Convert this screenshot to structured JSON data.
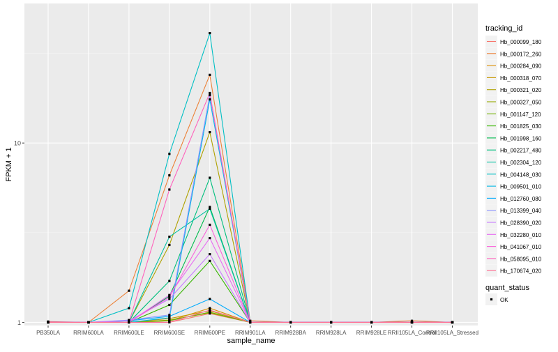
{
  "chart_data": {
    "type": "line",
    "title": "",
    "xlabel": "sample_name",
    "ylabel": "FPKM + 1",
    "y_scale": "log10",
    "ylim": [
      0.96,
      60
    ],
    "y_ticks": [
      1,
      10
    ],
    "y_tick_labels": [
      "1",
      "10"
    ],
    "grid": true,
    "legend_position": "right",
    "categories": [
      "PB350LA",
      "RRIM600LA",
      "RRIM600LE",
      "RRIM600SE",
      "RRIM600PE",
      "RRIM901LA",
      "RRIM928BA",
      "RRIM928LA",
      "RRIM928LE",
      "RRII105LA_Control",
      "RRII105LA_Stressed"
    ],
    "color_legend_title": "tracking_id",
    "shape_legend_title": "quant_status",
    "shape_legend_items": [
      "OK"
    ],
    "series": [
      {
        "name": "Hb_000099_180",
        "color": "#F8766D",
        "values": [
          1.01,
          1.0,
          1.0,
          1.0,
          1.12,
          1.0,
          1.0,
          1.0,
          1.0,
          1.0,
          1.0
        ]
      },
      {
        "name": "Hb_000172_260",
        "color": "#EC8239",
        "values": [
          1.0,
          1.0,
          1.5,
          6.6,
          24.0,
          1.02,
          1.0,
          1.0,
          1.0,
          1.02,
          1.0
        ]
      },
      {
        "name": "Hb_000284_090",
        "color": "#DB8E00",
        "values": [
          1.0,
          1.0,
          1.0,
          1.02,
          1.2,
          1.0,
          1.0,
          1.0,
          1.0,
          1.0,
          1.0
        ]
      },
      {
        "name": "Hb_000318_070",
        "color": "#C79800",
        "values": [
          1.0,
          1.0,
          1.0,
          1.05,
          1.16,
          1.0,
          1.0,
          1.0,
          1.0,
          1.0,
          1.0
        ]
      },
      {
        "name": "Hb_000321_020",
        "color": "#AFA100",
        "values": [
          1.0,
          1.0,
          1.0,
          2.7,
          11.5,
          1.0,
          1.0,
          1.0,
          1.0,
          1.0,
          1.0
        ]
      },
      {
        "name": "Hb_000327_050",
        "color": "#96A900",
        "values": [
          1.0,
          1.0,
          1.0,
          1.03,
          1.13,
          1.0,
          1.0,
          1.0,
          1.0,
          1.0,
          1.0
        ]
      },
      {
        "name": "Hb_001147_120",
        "color": "#72B000",
        "values": [
          1.0,
          1.0,
          1.0,
          1.02,
          1.14,
          1.0,
          1.0,
          1.0,
          1.0,
          1.0,
          1.0
        ]
      },
      {
        "name": "Hb_001825_030",
        "color": "#36B600",
        "values": [
          1.0,
          1.0,
          1.0,
          1.25,
          2.2,
          1.0,
          1.0,
          1.0,
          1.0,
          1.0,
          1.0
        ]
      },
      {
        "name": "Hb_001998_160",
        "color": "#00BB4E",
        "values": [
          1.0,
          1.0,
          1.0,
          1.4,
          4.4,
          1.0,
          1.0,
          1.0,
          1.0,
          1.0,
          1.0
        ]
      },
      {
        "name": "Hb_002217_480",
        "color": "#00BF7D",
        "values": [
          1.0,
          1.0,
          1.0,
          1.7,
          6.4,
          1.0,
          1.0,
          1.0,
          1.0,
          1.0,
          1.0
        ]
      },
      {
        "name": "Hb_002304_120",
        "color": "#00C1A3",
        "values": [
          1.0,
          1.0,
          1.0,
          3.0,
          4.3,
          1.0,
          1.0,
          1.0,
          1.0,
          1.0,
          1.0
        ]
      },
      {
        "name": "Hb_004148_030",
        "color": "#00BFC4",
        "values": [
          1.0,
          1.0,
          1.2,
          8.7,
          41.0,
          1.0,
          1.0,
          1.0,
          1.0,
          1.0,
          1.0
        ]
      },
      {
        "name": "Hb_009501_010",
        "color": "#00B8E5",
        "values": [
          1.0,
          1.0,
          1.0,
          1.06,
          17.5,
          1.0,
          1.0,
          1.0,
          1.0,
          1.0,
          1.0
        ]
      },
      {
        "name": "Hb_012760_080",
        "color": "#00ABFD",
        "values": [
          1.0,
          1.0,
          1.02,
          1.08,
          1.35,
          1.0,
          1.0,
          1.0,
          1.0,
          1.0,
          1.0
        ]
      },
      {
        "name": "Hb_013399_040",
        "color": "#8B93FF",
        "values": [
          1.0,
          1.0,
          1.03,
          1.1,
          18.5,
          1.0,
          1.0,
          1.0,
          1.0,
          1.0,
          1.0
        ]
      },
      {
        "name": "Hb_028390_020",
        "color": "#C77CFF",
        "values": [
          1.0,
          1.0,
          1.02,
          1.35,
          2.4,
          1.0,
          1.0,
          1.0,
          1.0,
          1.0,
          1.0
        ]
      },
      {
        "name": "Hb_032280_010",
        "color": "#E76BF3",
        "values": [
          1.0,
          1.0,
          1.0,
          1.42,
          2.95,
          1.0,
          1.0,
          1.0,
          1.0,
          1.0,
          1.0
        ]
      },
      {
        "name": "Hb_041067_010",
        "color": "#FA62DB",
        "values": [
          1.0,
          1.0,
          1.0,
          1.38,
          3.5,
          1.0,
          1.0,
          1.0,
          1.0,
          1.0,
          1.0
        ]
      },
      {
        "name": "Hb_058095_010",
        "color": "#FF62BC",
        "values": [
          1.0,
          1.0,
          1.0,
          5.5,
          19.0,
          1.0,
          1.0,
          1.0,
          1.0,
          1.0,
          1.0
        ]
      },
      {
        "name": "Hb_170674_020",
        "color": "#FF6C91",
        "values": [
          1.0,
          1.0,
          1.0,
          1.0,
          1.17,
          1.0,
          1.0,
          1.0,
          1.0,
          1.0,
          1.0
        ]
      }
    ]
  }
}
